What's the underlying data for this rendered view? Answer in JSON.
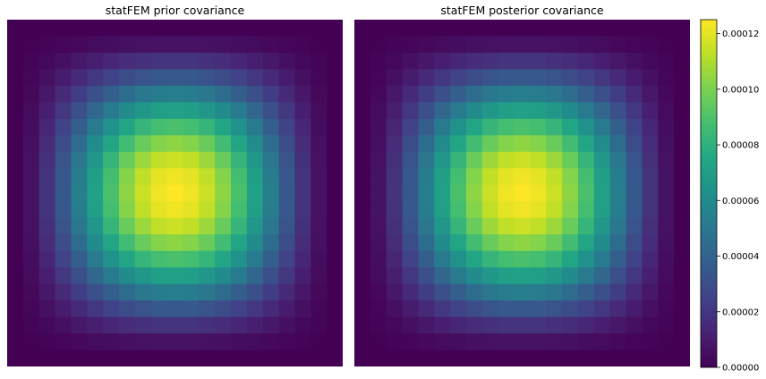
{
  "chart_data": [
    {
      "type": "heatmap",
      "title": "statFEM prior covariance",
      "grid_size": [
        21,
        21
      ],
      "max_value": 0.000125,
      "peak_cell": [
        10,
        10
      ],
      "colormap": "viridis",
      "boundary_value": 0
    },
    {
      "type": "heatmap",
      "title": "statFEM posterior covariance",
      "grid_size": [
        21,
        21
      ],
      "max_value": 0.000125,
      "peak_cell": [
        10,
        10
      ],
      "colormap": "viridis",
      "boundary_value": 0
    }
  ],
  "colorbar": {
    "min": 0,
    "max": 0.000125,
    "ticks": [
      0,
      2e-05,
      4e-05,
      6e-05,
      8e-05,
      0.0001,
      0.00012
    ],
    "tick_labels": [
      "0.00000",
      "0.00002",
      "0.00004",
      "0.00006",
      "0.00008",
      "0.00010",
      "0.00012"
    ]
  }
}
